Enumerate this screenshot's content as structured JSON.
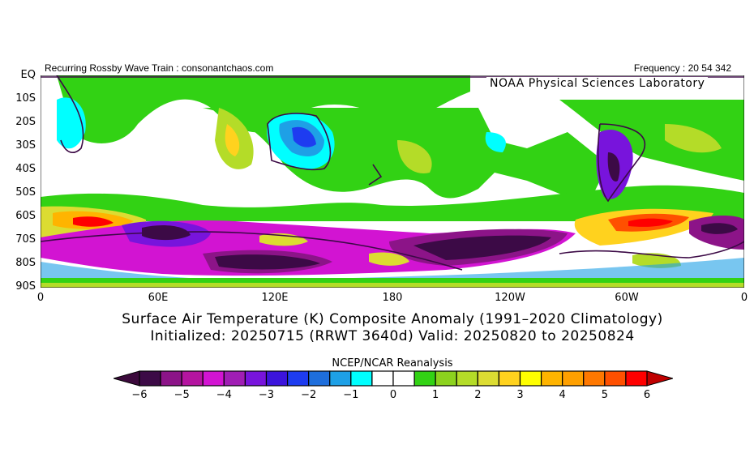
{
  "header": {
    "left": "Recurring Rossby Wave Train : consonantchaos.com",
    "right": "Frequency : 20 54 342",
    "lab": "NOAA Physical Sciences Laboratory"
  },
  "map": {
    "lat_labels": [
      "EQ",
      "10S",
      "20S",
      "30S",
      "40S",
      "50S",
      "60S",
      "70S",
      "80S",
      "90S"
    ],
    "lon_labels": [
      "0",
      "60E",
      "120E",
      "180",
      "120W",
      "60W",
      "0"
    ]
  },
  "titles": {
    "line1": "Surface Air Temperature (K) Composite Anomaly (1991–2020 Climatology)",
    "line2": "Initialized: 20250715 (RRWT 3640d) Valid: 20250820 to 20250824"
  },
  "colorbar": {
    "label": "NCEP/NCAR Reanalysis",
    "ticks": [
      "-6",
      "-5",
      "-4",
      "-3",
      "-2",
      "-1",
      "0",
      "1",
      "2",
      "3",
      "4",
      "5",
      "6"
    ],
    "range": [
      -6,
      6
    ],
    "colors": [
      "#3c0a46",
      "#8c1488",
      "#b414a0",
      "#d214d2",
      "#a01eb4",
      "#7814dc",
      "#3c14dc",
      "#1e3cf0",
      "#1e6edc",
      "#1ea0e6",
      "#00ffff",
      "#ffffff",
      "#ffffff",
      "#32d214",
      "#8cd21e",
      "#b4dc28",
      "#dcdc32",
      "#ffd21e",
      "#ffff00",
      "#ffb400",
      "#ffa000",
      "#ff7800",
      "#ff5000",
      "#ff0000"
    ],
    "under_color": "#3c0a3c",
    "over_color": "#c00000"
  }
}
